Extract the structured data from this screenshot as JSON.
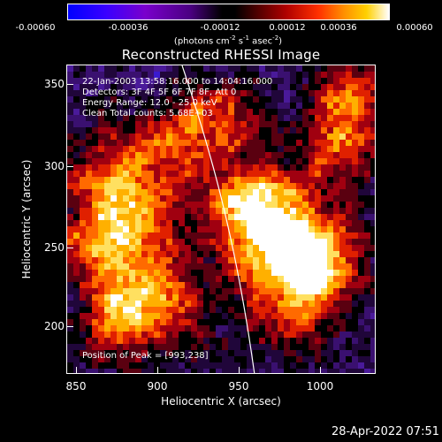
{
  "colorbar": {
    "ticks": [
      "-0.00060",
      "-0.00036",
      "-0.00012",
      "0.00012",
      "0.00036",
      "0.00060"
    ],
    "units_prefix": "(photons cm",
    "units_sup1": "-2",
    "units_mid1": " s",
    "units_sup2": "-1",
    "units_mid2": " asec",
    "units_sup3": "-2",
    "units_suffix": ")",
    "colors": [
      "#0000ff",
      "#7a00cc",
      "#000000",
      "#b00000",
      "#ff9000",
      "#ffffff"
    ]
  },
  "title": "Reconstructed RHESSI Image",
  "info": {
    "time_range": "22-Jan-2003 13:58:16.000 to 14:04:16.000",
    "detectors": "Detectors: 3F 4F 5F 6F 7F 8F, Att 0",
    "energy_range": "Energy Range: 12.0 - 25.0 keV",
    "method": "Clean     Total counts: 5.68E+03",
    "peak": "Position of Peak = [993,238]"
  },
  "axes": {
    "xlabel": "Heliocentric X (arcsec)",
    "ylabel": "Heliocentric Y (arcsec)",
    "xticks": [
      "850",
      "900",
      "950",
      "1000"
    ],
    "yticks": [
      "350",
      "300",
      "250",
      "200"
    ],
    "xlim": [
      845,
      1040
    ],
    "ylim": [
      168,
      365
    ]
  },
  "footer": {
    "timestamp": "28-Apr-2022 07:51"
  }
}
